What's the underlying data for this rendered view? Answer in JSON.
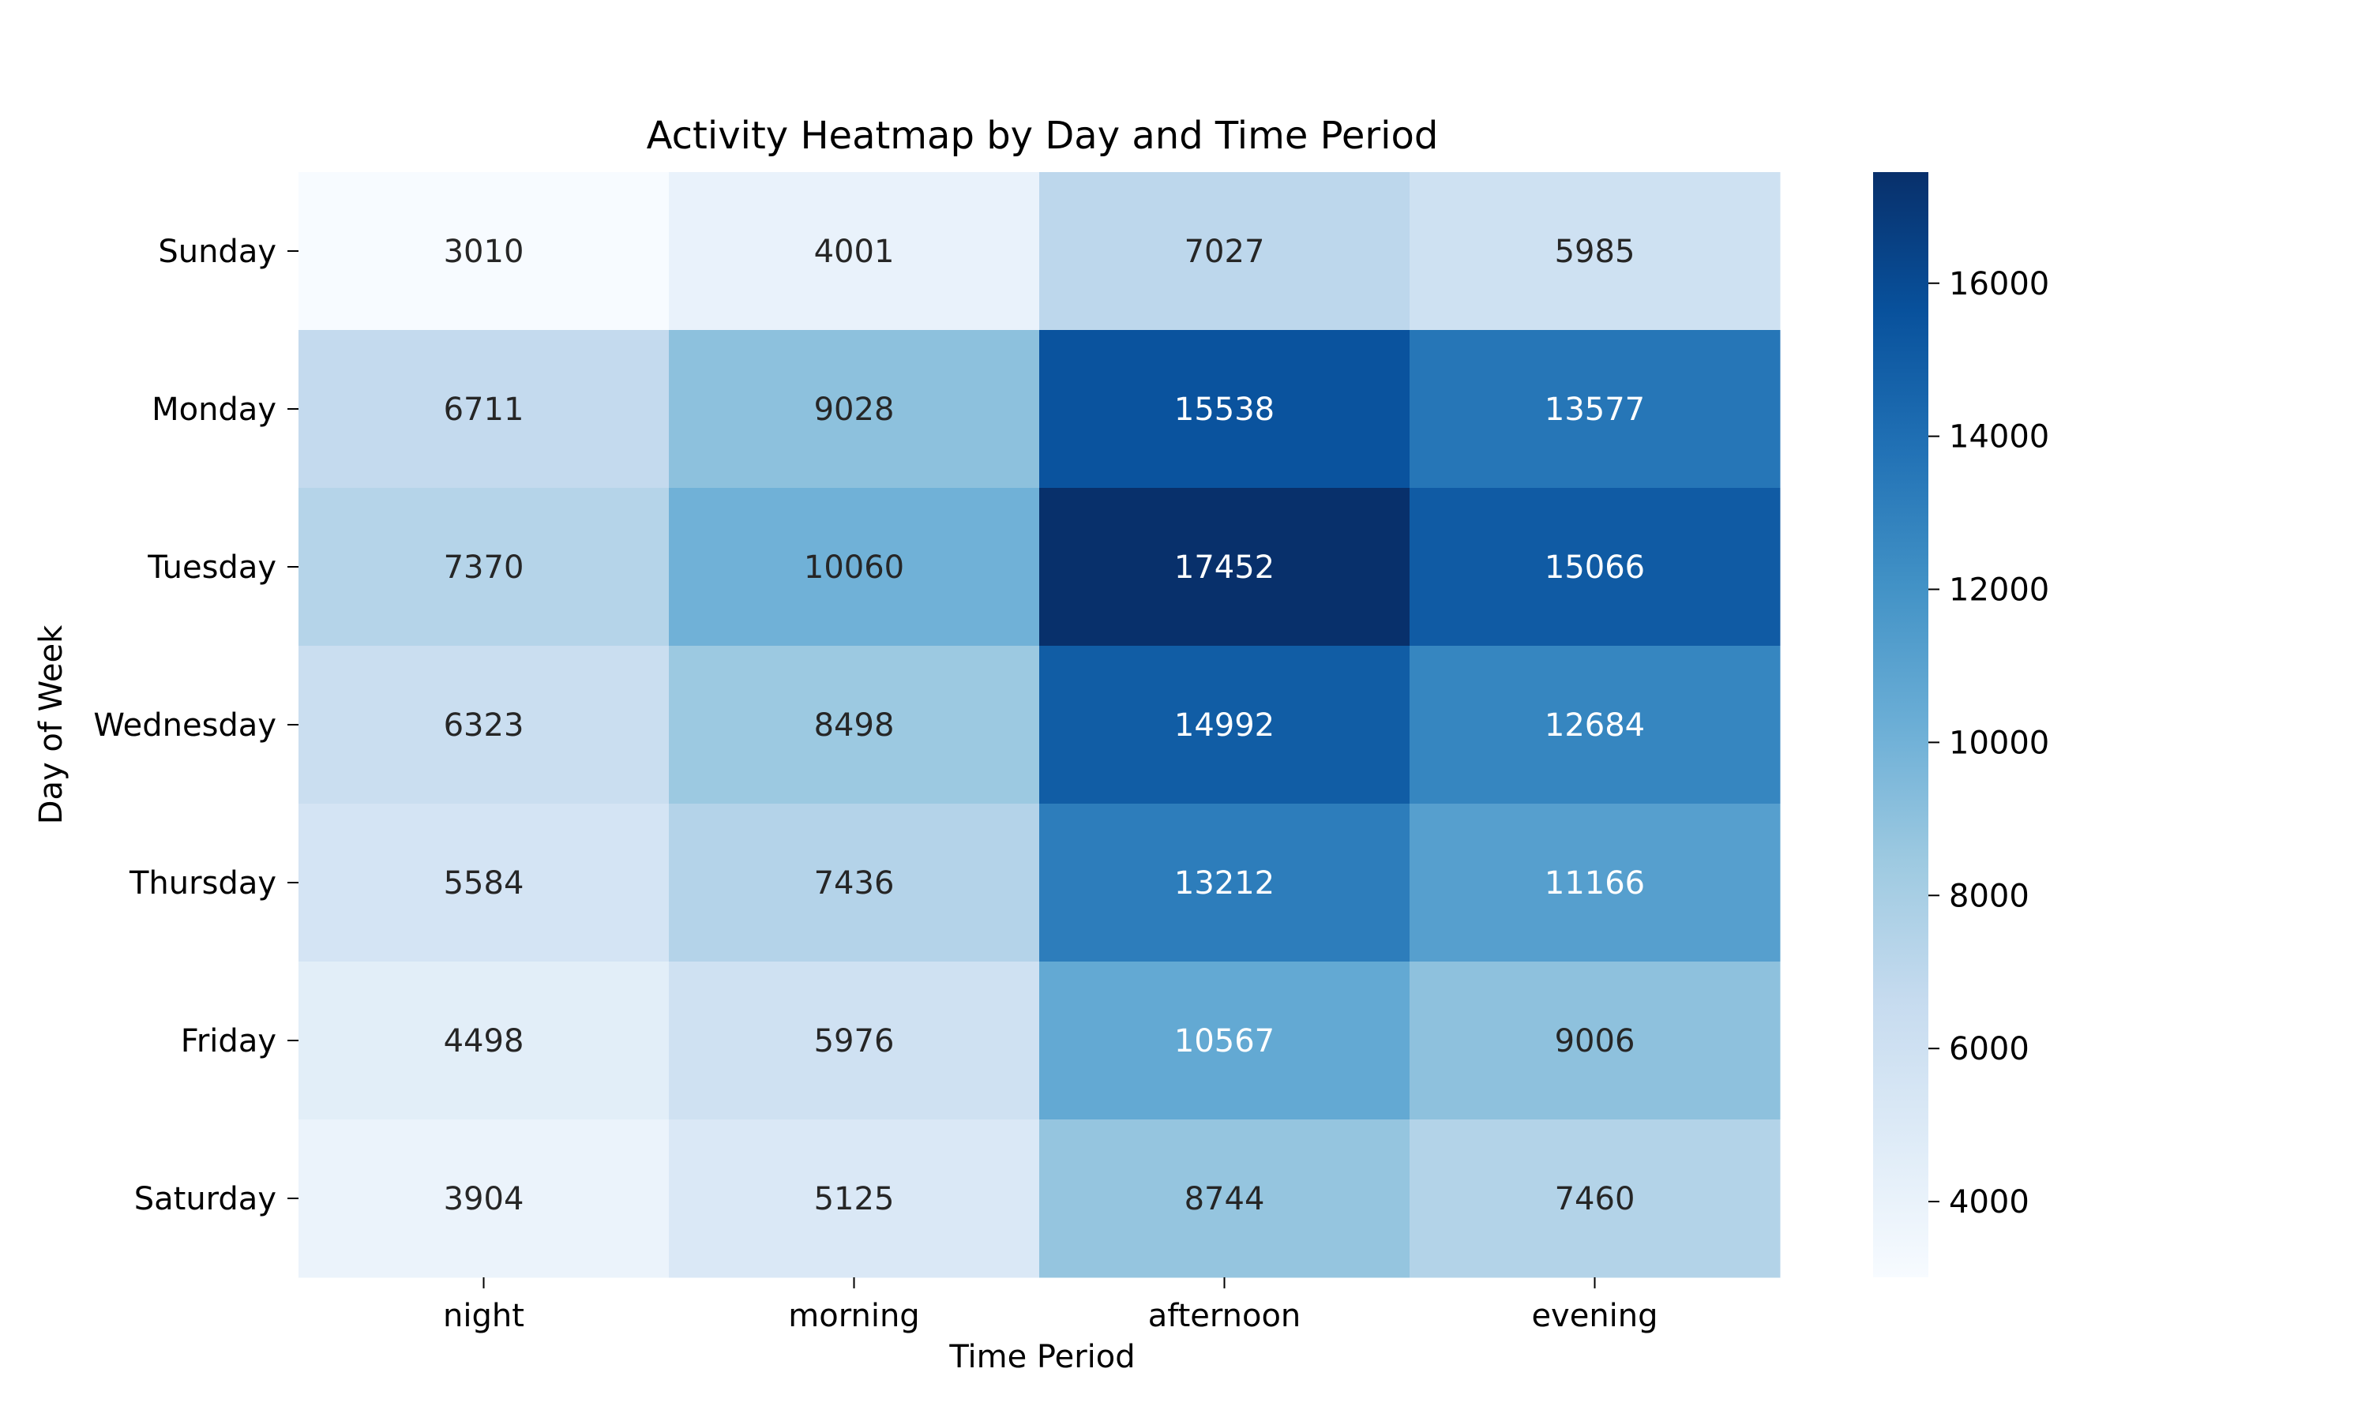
{
  "chart_data": {
    "type": "heatmap",
    "title": "Activity Heatmap by Day and Time Period",
    "xlabel": "Time Period",
    "ylabel": "Day of Week",
    "x_categories": [
      "night",
      "morning",
      "afternoon",
      "evening"
    ],
    "y_categories": [
      "Sunday",
      "Monday",
      "Tuesday",
      "Wednesday",
      "Thursday",
      "Friday",
      "Saturday"
    ],
    "values": [
      [
        3010,
        4001,
        7027,
        5985
      ],
      [
        6711,
        9028,
        15538,
        13577
      ],
      [
        7370,
        10060,
        17452,
        15066
      ],
      [
        6323,
        8498,
        14992,
        12684
      ],
      [
        5584,
        7436,
        13212,
        11166
      ],
      [
        4498,
        5976,
        10567,
        9006
      ],
      [
        3904,
        5125,
        8744,
        7460
      ]
    ],
    "colorbar": {
      "min": 3010,
      "max": 17452,
      "ticks": [
        4000,
        6000,
        8000,
        10000,
        12000,
        14000,
        16000
      ]
    },
    "colormap": "Blues",
    "colormap_stops": [
      "#f7fbff",
      "#deebf7",
      "#c6dbef",
      "#9ecae1",
      "#6baed6",
      "#4292c6",
      "#2171b5",
      "#08519c",
      "#08306b"
    ],
    "text_color_dark": "#262626",
    "text_color_light": "#ffffff"
  }
}
